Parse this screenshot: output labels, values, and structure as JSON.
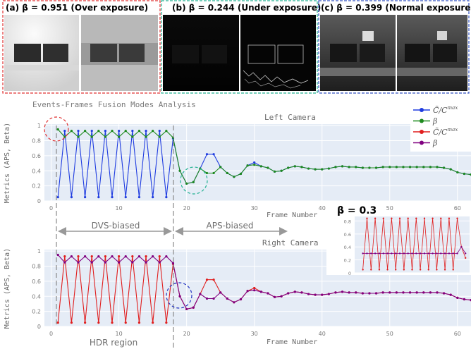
{
  "panels": [
    {
      "label": "(a) β = 0.951 (Over exposure)",
      "border": "#e03030",
      "tone": "over"
    },
    {
      "label": "(b) β = 0.244 (Under exposure)",
      "border": "#20b090",
      "tone": "under"
    },
    {
      "label": "(c) β = 0.399 (Normal exposure)",
      "border": "#3050c0",
      "tone": "normal"
    }
  ],
  "figure_title": "Events-Frames Fusion Modes Analysis",
  "legend": {
    "entries": [
      {
        "label": "C̃/C^max",
        "color": "#1f3ce0"
      },
      {
        "label": "β",
        "color": "#1e8a1e"
      },
      {
        "label": "C̃/C^max",
        "color": "#e01e1e"
      },
      {
        "label": "β",
        "color": "#800080"
      }
    ]
  },
  "annotations": {
    "dvs_biased": "DVS-biased",
    "aps_biased": "APS-biased",
    "hdr_region": "HDR region",
    "inset_title": "β = 0.3"
  },
  "colors": {
    "plot_bg": "#e5ecf6",
    "grid": "#ffffff",
    "axis_text": "#7a7a7a",
    "left_ratio": "#1f3ce0",
    "left_beta": "#1e8a1e",
    "right_ratio": "#e01e1e",
    "right_beta": "#800080"
  },
  "chart_data": [
    {
      "type": "line",
      "title": "Left Camera",
      "xlabel": "Frame Number",
      "ylabel": "Metrics (APS, Beta)",
      "xlim": [
        -1,
        62
      ],
      "ylim": [
        0,
        1.02
      ],
      "xticks": [
        0,
        10,
        20,
        30,
        40,
        50,
        60
      ],
      "yticks": [
        0,
        0.2,
        0.4,
        0.6,
        0.8,
        1
      ],
      "grid": true,
      "x": [
        1,
        2,
        3,
        4,
        5,
        6,
        7,
        8,
        9,
        10,
        11,
        12,
        13,
        14,
        15,
        16,
        17,
        18,
        19,
        20,
        21,
        22,
        23,
        24,
        25,
        26,
        27,
        28,
        29,
        30,
        31,
        32,
        33,
        34,
        35,
        36,
        37,
        38,
        39,
        40,
        41,
        42,
        43,
        44,
        45,
        46,
        47,
        48,
        49,
        50,
        51,
        52,
        53,
        54,
        55,
        56,
        57,
        58,
        59,
        60,
        61,
        62
      ],
      "series": [
        {
          "name": "C̃/C^max",
          "color": "#1f3ce0",
          "values": [
            0.05,
            0.93,
            0.05,
            0.93,
            0.05,
            0.93,
            0.05,
            0.93,
            0.05,
            0.93,
            0.05,
            0.93,
            0.05,
            0.93,
            0.05,
            0.93,
            0.05,
            0.83,
            0.4,
            0.23,
            0.25,
            0.43,
            0.62,
            0.62,
            0.45,
            0.37,
            0.32,
            0.36,
            0.47,
            0.51,
            0.46,
            0.44,
            0.39,
            0.4,
            0.44,
            0.46,
            0.45,
            0.43,
            0.42,
            0.42,
            0.43,
            0.45,
            0.46,
            0.45,
            0.45,
            0.44,
            0.44,
            0.44,
            0.45,
            0.45,
            0.45,
            0.45,
            0.45,
            0.45,
            0.45,
            0.45,
            0.45,
            0.44,
            0.42,
            0.38,
            0.36,
            0.35
          ]
        },
        {
          "name": "β",
          "color": "#1e8a1e",
          "values": [
            0.95,
            0.85,
            0.93,
            0.85,
            0.93,
            0.85,
            0.93,
            0.85,
            0.93,
            0.85,
            0.93,
            0.85,
            0.93,
            0.85,
            0.93,
            0.85,
            0.93,
            0.84,
            0.4,
            0.23,
            0.25,
            0.43,
            0.37,
            0.37,
            0.45,
            0.37,
            0.32,
            0.36,
            0.47,
            0.48,
            0.46,
            0.44,
            0.39,
            0.4,
            0.44,
            0.46,
            0.45,
            0.43,
            0.42,
            0.42,
            0.43,
            0.45,
            0.46,
            0.45,
            0.45,
            0.44,
            0.44,
            0.44,
            0.45,
            0.45,
            0.45,
            0.45,
            0.45,
            0.45,
            0.45,
            0.45,
            0.45,
            0.44,
            0.42,
            0.38,
            0.36,
            0.35
          ]
        }
      ]
    },
    {
      "type": "line",
      "title": "Right Camera",
      "xlabel": "Frame Number",
      "ylabel": "Metrics (APS, Beta)",
      "xlim": [
        -1,
        62
      ],
      "ylim": [
        0,
        1.02
      ],
      "xticks": [
        0,
        10,
        20,
        30,
        40,
        50,
        60
      ],
      "yticks": [
        0,
        0.2,
        0.4,
        0.6,
        0.8,
        1
      ],
      "grid": true,
      "x": [
        1,
        2,
        3,
        4,
        5,
        6,
        7,
        8,
        9,
        10,
        11,
        12,
        13,
        14,
        15,
        16,
        17,
        18,
        19,
        20,
        21,
        22,
        23,
        24,
        25,
        26,
        27,
        28,
        29,
        30,
        31,
        32,
        33,
        34,
        35,
        36,
        37,
        38,
        39,
        40,
        41,
        42,
        43,
        44,
        45,
        46,
        47,
        48,
        49,
        50,
        51,
        52,
        53,
        54,
        55,
        56,
        57,
        58,
        59,
        60,
        61,
        62
      ],
      "series": [
        {
          "name": "C̃/C^max",
          "color": "#e01e1e",
          "values": [
            0.05,
            0.93,
            0.05,
            0.93,
            0.05,
            0.93,
            0.05,
            0.93,
            0.05,
            0.93,
            0.05,
            0.93,
            0.05,
            0.93,
            0.05,
            0.93,
            0.05,
            0.83,
            0.4,
            0.23,
            0.25,
            0.43,
            0.62,
            0.62,
            0.45,
            0.37,
            0.32,
            0.36,
            0.47,
            0.51,
            0.46,
            0.44,
            0.39,
            0.4,
            0.44,
            0.46,
            0.45,
            0.43,
            0.42,
            0.42,
            0.43,
            0.45,
            0.46,
            0.45,
            0.45,
            0.44,
            0.44,
            0.44,
            0.45,
            0.45,
            0.45,
            0.45,
            0.45,
            0.45,
            0.45,
            0.45,
            0.45,
            0.44,
            0.42,
            0.38,
            0.36,
            0.35
          ]
        },
        {
          "name": "β",
          "color": "#800080",
          "values": [
            0.95,
            0.85,
            0.93,
            0.85,
            0.93,
            0.85,
            0.93,
            0.85,
            0.93,
            0.85,
            0.93,
            0.85,
            0.93,
            0.85,
            0.93,
            0.85,
            0.93,
            0.84,
            0.4,
            0.23,
            0.25,
            0.43,
            0.37,
            0.37,
            0.45,
            0.37,
            0.32,
            0.36,
            0.47,
            0.48,
            0.46,
            0.44,
            0.39,
            0.4,
            0.44,
            0.46,
            0.45,
            0.43,
            0.42,
            0.42,
            0.43,
            0.45,
            0.46,
            0.45,
            0.45,
            0.44,
            0.44,
            0.44,
            0.45,
            0.45,
            0.45,
            0.45,
            0.45,
            0.45,
            0.45,
            0.45,
            0.45,
            0.44,
            0.42,
            0.38,
            0.36,
            0.35
          ]
        }
      ]
    },
    {
      "type": "line",
      "title": "β = 0.3",
      "xlim": [
        -1,
        27
      ],
      "ylim": [
        0,
        0.87
      ],
      "yticks": [
        0,
        0.2,
        0.4,
        0.6,
        0.8
      ],
      "grid": true,
      "x": [
        1,
        2,
        3,
        4,
        5,
        6,
        7,
        8,
        9,
        10,
        11,
        12,
        13,
        14,
        15,
        16,
        17,
        18,
        19,
        20,
        21,
        22,
        23,
        24,
        25,
        26
      ],
      "series": [
        {
          "color": "#e01e1e",
          "values": [
            0.05,
            0.84,
            0.05,
            0.84,
            0.05,
            0.84,
            0.05,
            0.84,
            0.05,
            0.84,
            0.05,
            0.84,
            0.05,
            0.84,
            0.05,
            0.84,
            0.05,
            0.84,
            0.05,
            0.84,
            0.05,
            0.84,
            0.05,
            0.84,
            0.4,
            0.23
          ]
        },
        {
          "color": "#800080",
          "values": [
            0.3,
            0.3,
            0.3,
            0.3,
            0.3,
            0.3,
            0.3,
            0.3,
            0.3,
            0.3,
            0.3,
            0.3,
            0.3,
            0.3,
            0.3,
            0.3,
            0.3,
            0.3,
            0.3,
            0.3,
            0.3,
            0.3,
            0.3,
            0.3,
            0.4,
            0.3
          ]
        }
      ]
    }
  ]
}
